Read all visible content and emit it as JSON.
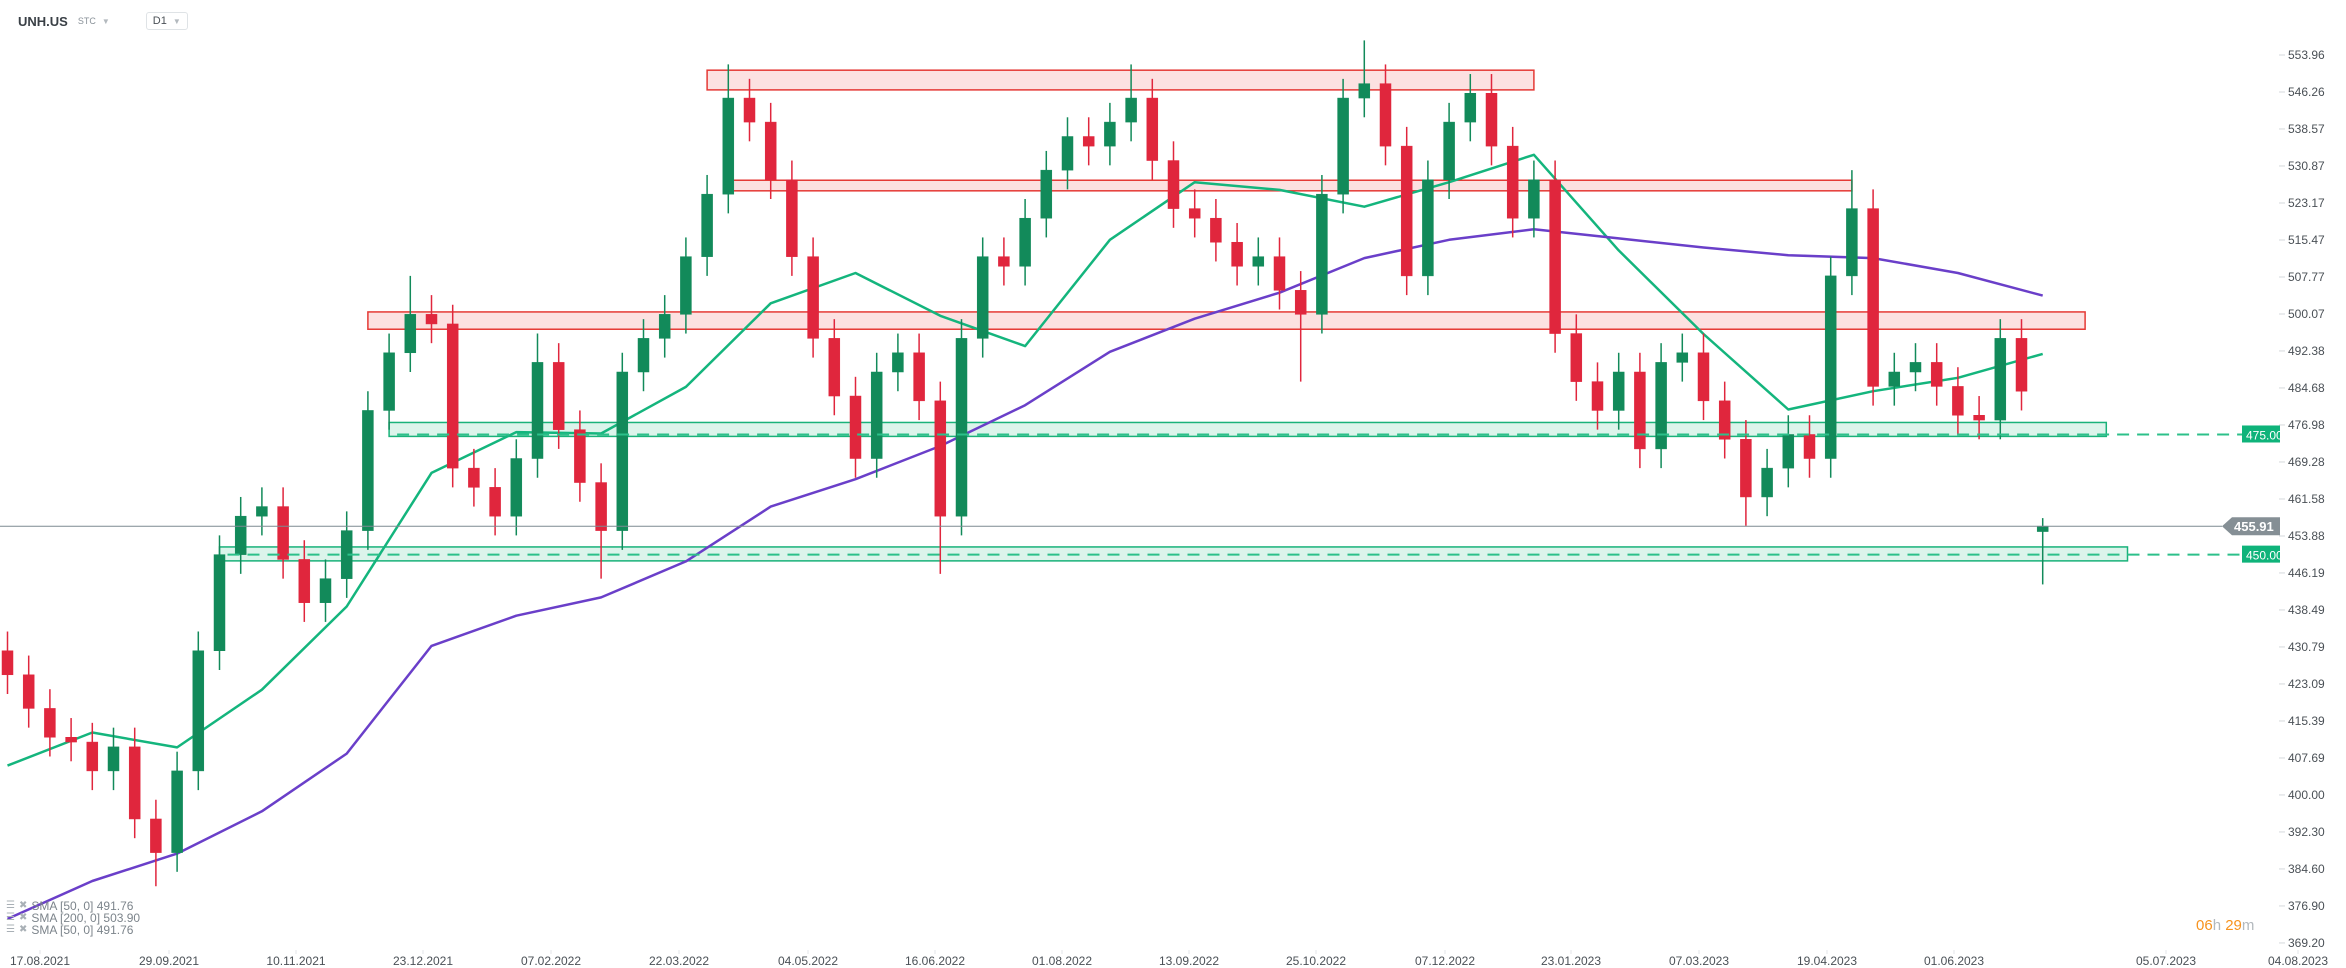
{
  "header": {
    "symbol": "UNH.US",
    "type": "STC",
    "timeframe": "D1"
  },
  "legend": [
    {
      "label": "SMA  [50,  0]  491.76"
    },
    {
      "label": "SMA  [200,  0]  503.90"
    },
    {
      "label": "SMA  [50,  0]  491.76"
    }
  ],
  "countdown": {
    "hours": "06",
    "h": "h",
    "minutes": "29",
    "m": "m"
  },
  "colors": {
    "up": "#128a5a",
    "down": "#e0263d",
    "sma50": "#14b57d",
    "sma200": "#6a3fc9",
    "resistance_fill": "#fbdcdc",
    "resistance_stroke": "#e53935",
    "support_fill": "#d6f2e7",
    "support_stroke": "#19b27a",
    "price_line": "#7d8a91"
  },
  "chart_data": {
    "type": "candlestick",
    "symbol": "UNH.US",
    "interval_shown": "D1",
    "ylim": [
      369.2,
      553.96
    ],
    "y_ticks": [
      "553.96",
      "546.26",
      "538.57",
      "530.87",
      "523.17",
      "515.47",
      "507.77",
      "500.07",
      "492.38",
      "484.68",
      "476.98",
      "469.28",
      "461.58",
      "453.88",
      "446.19",
      "438.49",
      "430.79",
      "423.09",
      "415.39",
      "407.69",
      "400.00",
      "392.30",
      "384.60",
      "376.90",
      "369.20"
    ],
    "x_ticks": [
      "17.08.2021",
      "29.09.2021",
      "10.11.2021",
      "23.12.2021",
      "07.02.2022",
      "22.03.2022",
      "04.05.2022",
      "16.06.2022",
      "01.08.2022",
      "13.09.2022",
      "25.10.2022",
      "07.12.2022",
      "23.01.2023",
      "07.03.2023",
      "19.04.2023",
      "01.06.2023",
      "05.07.2023",
      "04.08.2023"
    ],
    "last_price": "455.91",
    "candles_columns": [
      "date",
      "open",
      "high",
      "low",
      "close"
    ],
    "candles": [
      [
        "2021-08-11",
        430,
        434,
        421,
        425
      ],
      [
        "2021-08-18",
        425,
        429,
        414,
        418
      ],
      [
        "2021-08-25",
        418,
        422,
        408,
        412
      ],
      [
        "2021-09-01",
        412,
        416,
        407,
        411
      ],
      [
        "2021-09-08",
        411,
        415,
        401,
        405
      ],
      [
        "2021-09-15",
        405,
        414,
        401,
        410
      ],
      [
        "2021-09-22",
        410,
        414,
        391,
        395
      ],
      [
        "2021-09-29",
        395,
        399,
        381,
        388
      ],
      [
        "2021-10-06",
        388,
        409,
        384,
        405
      ],
      [
        "2021-10-13",
        405,
        434,
        401,
        430
      ],
      [
        "2021-10-20",
        430,
        454,
        426,
        450
      ],
      [
        "2021-10-27",
        450,
        462,
        446,
        458
      ],
      [
        "2021-11-03",
        458,
        464,
        454,
        460
      ],
      [
        "2021-11-10",
        460,
        464,
        445,
        449
      ],
      [
        "2021-11-17",
        449,
        453,
        436,
        440
      ],
      [
        "2021-11-24",
        440,
        449,
        436,
        445
      ],
      [
        "2021-12-01",
        445,
        459,
        441,
        455
      ],
      [
        "2021-12-08",
        455,
        484,
        451,
        480
      ],
      [
        "2021-12-15",
        480,
        496,
        476,
        492
      ],
      [
        "2021-12-22",
        492,
        508,
        488,
        500
      ],
      [
        "2021-12-29",
        500,
        504,
        494,
        498
      ],
      [
        "2022-01-05",
        498,
        502,
        464,
        468
      ],
      [
        "2022-01-12",
        468,
        472,
        460,
        464
      ],
      [
        "2022-01-19",
        464,
        468,
        454,
        458
      ],
      [
        "2022-01-26",
        458,
        474,
        454,
        470
      ],
      [
        "2022-02-02",
        470,
        496,
        466,
        490
      ],
      [
        "2022-02-09",
        490,
        494,
        472,
        476
      ],
      [
        "2022-02-16",
        476,
        480,
        461,
        465
      ],
      [
        "2022-02-23",
        465,
        469,
        445,
        455
      ],
      [
        "2022-03-02",
        455,
        492,
        451,
        488
      ],
      [
        "2022-03-09",
        488,
        499,
        484,
        495
      ],
      [
        "2022-03-16",
        495,
        504,
        491,
        500
      ],
      [
        "2022-03-23",
        500,
        516,
        496,
        512
      ],
      [
        "2022-03-30",
        512,
        529,
        508,
        525
      ],
      [
        "2022-04-06",
        525,
        552,
        521,
        545
      ],
      [
        "2022-04-13",
        545,
        549,
        536,
        540
      ],
      [
        "2022-04-20",
        540,
        544,
        524,
        528
      ],
      [
        "2022-04-27",
        528,
        532,
        508,
        512
      ],
      [
        "2022-05-04",
        512,
        516,
        491,
        495
      ],
      [
        "2022-05-11",
        495,
        499,
        479,
        483
      ],
      [
        "2022-05-18",
        483,
        487,
        466,
        470
      ],
      [
        "2022-05-25",
        470,
        492,
        466,
        488
      ],
      [
        "2022-06-01",
        488,
        496,
        484,
        492
      ],
      [
        "2022-06-08",
        492,
        496,
        478,
        482
      ],
      [
        "2022-06-15",
        482,
        486,
        446,
        458
      ],
      [
        "2022-06-22",
        458,
        499,
        454,
        495
      ],
      [
        "2022-06-29",
        495,
        516,
        491,
        512
      ],
      [
        "2022-07-06",
        512,
        516,
        506,
        510
      ],
      [
        "2022-07-13",
        510,
        524,
        506,
        520
      ],
      [
        "2022-07-20",
        520,
        534,
        516,
        530
      ],
      [
        "2022-07-27",
        530,
        541,
        526,
        537
      ],
      [
        "2022-08-03",
        537,
        541,
        531,
        535
      ],
      [
        "2022-08-10",
        535,
        544,
        531,
        540
      ],
      [
        "2022-08-17",
        540,
        552,
        536,
        545
      ],
      [
        "2022-08-24",
        545,
        549,
        528,
        532
      ],
      [
        "2022-08-31",
        532,
        536,
        518,
        522
      ],
      [
        "2022-09-07",
        522,
        526,
        516,
        520
      ],
      [
        "2022-09-14",
        520,
        524,
        511,
        515
      ],
      [
        "2022-09-21",
        515,
        519,
        506,
        510
      ],
      [
        "2022-09-28",
        510,
        516,
        506,
        512
      ],
      [
        "2022-10-05",
        512,
        516,
        501,
        505
      ],
      [
        "2022-10-12",
        505,
        509,
        486,
        500
      ],
      [
        "2022-10-19",
        500,
        529,
        496,
        525
      ],
      [
        "2022-10-26",
        525,
        549,
        521,
        545
      ],
      [
        "2022-11-02",
        545,
        557,
        541,
        548
      ],
      [
        "2022-11-09",
        548,
        552,
        531,
        535
      ],
      [
        "2022-11-16",
        535,
        539,
        504,
        508
      ],
      [
        "2022-11-23",
        508,
        532,
        504,
        528
      ],
      [
        "2022-11-30",
        528,
        544,
        524,
        540
      ],
      [
        "2022-12-07",
        540,
        550,
        536,
        546
      ],
      [
        "2022-12-14",
        546,
        550,
        531,
        535
      ],
      [
        "2022-12-21",
        535,
        539,
        516,
        520
      ],
      [
        "2022-12-28",
        520,
        532,
        516,
        528
      ],
      [
        "2023-01-04",
        528,
        532,
        492,
        496
      ],
      [
        "2023-01-11",
        496,
        500,
        482,
        486
      ],
      [
        "2023-01-18",
        486,
        490,
        476,
        480
      ],
      [
        "2023-01-25",
        480,
        492,
        476,
        488
      ],
      [
        "2023-02-01",
        488,
        492,
        468,
        472
      ],
      [
        "2023-02-08",
        472,
        494,
        468,
        490
      ],
      [
        "2023-02-15",
        490,
        496,
        486,
        492
      ],
      [
        "2023-02-22",
        492,
        496,
        478,
        482
      ],
      [
        "2023-03-01",
        482,
        486,
        470,
        474
      ],
      [
        "2023-03-08",
        474,
        478,
        456,
        462
      ],
      [
        "2023-03-15",
        462,
        472,
        458,
        468
      ],
      [
        "2023-03-22",
        468,
        479,
        464,
        475
      ],
      [
        "2023-03-29",
        475,
        479,
        466,
        470
      ],
      [
        "2023-04-05",
        470,
        512,
        466,
        508
      ],
      [
        "2023-04-12",
        508,
        530,
        504,
        522
      ],
      [
        "2023-04-19",
        522,
        526,
        481,
        485
      ],
      [
        "2023-04-26",
        485,
        492,
        481,
        488
      ],
      [
        "2023-05-03",
        488,
        494,
        484,
        490
      ],
      [
        "2023-05-10",
        490,
        494,
        481,
        485
      ],
      [
        "2023-05-17",
        485,
        489,
        475,
        479
      ],
      [
        "2023-05-24",
        479,
        483,
        474,
        478
      ],
      [
        "2023-05-31",
        478,
        499,
        474,
        495
      ],
      [
        "2023-06-07",
        495,
        499,
        480,
        484
      ],
      [
        "2023-06-14",
        454.8,
        457.6,
        443.8,
        455.91
      ]
    ],
    "series": [
      {
        "name": "SMA [50, 0]",
        "value": "491.76",
        "points": [
          [
            "2021-08-11",
            406.1
          ],
          [
            "2021-09-08",
            413.0
          ],
          [
            "2021-10-06",
            409.9
          ],
          [
            "2021-11-03",
            421.9
          ],
          [
            "2021-12-01",
            439.2
          ],
          [
            "2021-12-29",
            467.0
          ],
          [
            "2022-01-26",
            475.5
          ],
          [
            "2022-02-23",
            475.2
          ],
          [
            "2022-03-23",
            484.9
          ],
          [
            "2022-04-20",
            502.3
          ],
          [
            "2022-05-18",
            508.6
          ],
          [
            "2022-06-15",
            499.7
          ],
          [
            "2022-07-13",
            493.4
          ],
          [
            "2022-08-10",
            515.5
          ],
          [
            "2022-09-07",
            527.5
          ],
          [
            "2022-10-05",
            525.9
          ],
          [
            "2022-11-02",
            522.4
          ],
          [
            "2022-11-30",
            527.5
          ],
          [
            "2022-12-28",
            533.2
          ],
          [
            "2023-01-25",
            513.3
          ],
          [
            "2023-02-22",
            495.9
          ],
          [
            "2023-03-22",
            480.2
          ],
          [
            "2023-04-19",
            484.0
          ],
          [
            "2023-05-17",
            486.8
          ],
          [
            "2023-06-14",
            491.76
          ]
        ]
      },
      {
        "name": "SMA [200, 0]",
        "value": "503.90",
        "points": [
          [
            "2021-08-11",
            374.2
          ],
          [
            "2021-09-08",
            382.1
          ],
          [
            "2021-10-06",
            387.8
          ],
          [
            "2021-11-03",
            396.6
          ],
          [
            "2021-12-01",
            408.6
          ],
          [
            "2021-12-29",
            431.0
          ],
          [
            "2022-01-26",
            437.3
          ],
          [
            "2022-02-23",
            441.1
          ],
          [
            "2022-03-23",
            448.6
          ],
          [
            "2022-04-20",
            460.0
          ],
          [
            "2022-05-18",
            465.7
          ],
          [
            "2022-06-15",
            472.6
          ],
          [
            "2022-07-13",
            481.1
          ],
          [
            "2022-08-10",
            492.2
          ],
          [
            "2022-09-07",
            499.1
          ],
          [
            "2022-10-05",
            504.5
          ],
          [
            "2022-11-02",
            511.7
          ],
          [
            "2022-11-30",
            515.5
          ],
          [
            "2022-12-28",
            517.7
          ],
          [
            "2023-01-25",
            515.8
          ],
          [
            "2023-02-22",
            513.9
          ],
          [
            "2023-03-22",
            512.3
          ],
          [
            "2023-04-19",
            511.7
          ],
          [
            "2023-05-17",
            508.6
          ],
          [
            "2023-06-14",
            503.9
          ]
        ]
      }
    ],
    "zones": [
      {
        "kind": "resistance",
        "low": 546.7,
        "high": 550.8,
        "from": "2022-03-30",
        "to": "2022-12-28"
      },
      {
        "kind": "resistance",
        "low": 525.7,
        "high": 527.9,
        "from": "2022-04-06",
        "to": "2023-04-12"
      },
      {
        "kind": "resistance",
        "low": 496.9,
        "high": 500.5,
        "from": "2021-12-08",
        "to": "2023-06-28"
      },
      {
        "kind": "support",
        "low": 474.6,
        "high": 477.5,
        "from": "2021-12-15",
        "to": "2023-07-05",
        "level": 475.0,
        "label": "475.00"
      },
      {
        "kind": "support",
        "low": 448.7,
        "high": 451.6,
        "from": "2021-10-20",
        "to": "2023-07-12",
        "level": 450.0,
        "label": "450.00"
      }
    ]
  }
}
